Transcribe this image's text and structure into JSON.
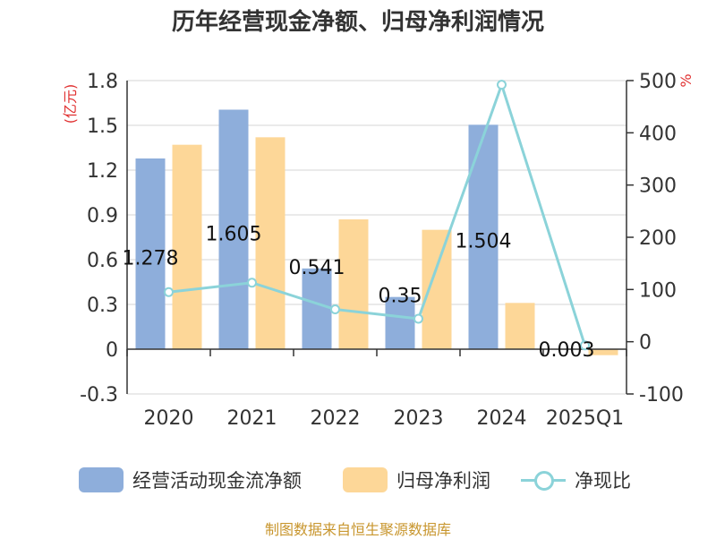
{
  "chart_data": {
    "type": "bar",
    "title": "历年经营现金净额、归母净利润情况",
    "categories": [
      "2020",
      "2021",
      "2022",
      "2023",
      "2024",
      "2025Q1"
    ],
    "left_axis": {
      "unit_label": "(亿元)",
      "ylim": [
        -0.3,
        1.8
      ],
      "ticks": [
        "1.8",
        "1.5",
        "1.2",
        "0.9",
        "0.6",
        "0.3",
        "0",
        "-0.3"
      ]
    },
    "right_axis": {
      "unit_label": "%",
      "ylim": [
        -100,
        500
      ],
      "ticks": [
        "500",
        "400",
        "300",
        "200",
        "100",
        "0",
        "-100"
      ]
    },
    "series": [
      {
        "name": "经营活动现金流净额",
        "kind": "bar",
        "axis": "left",
        "color": "#8eaedb",
        "values": [
          1.278,
          1.605,
          0.541,
          0.35,
          1.504,
          0.003
        ],
        "labels": [
          "1.278",
          "1.605",
          "0.541",
          "0.35",
          "1.504",
          "0.003"
        ]
      },
      {
        "name": "归母净利润",
        "kind": "bar",
        "axis": "left",
        "color": "#fdd798",
        "values": [
          1.37,
          1.42,
          0.87,
          0.8,
          0.31,
          -0.04
        ]
      },
      {
        "name": "净现比",
        "kind": "line",
        "axis": "right",
        "color": "#8bd3d9",
        "values": [
          95,
          113,
          62,
          44,
          492,
          -7
        ]
      }
    ],
    "grid": true,
    "legend": "bottom",
    "source": "制图数据来自恒生聚源数据库"
  }
}
